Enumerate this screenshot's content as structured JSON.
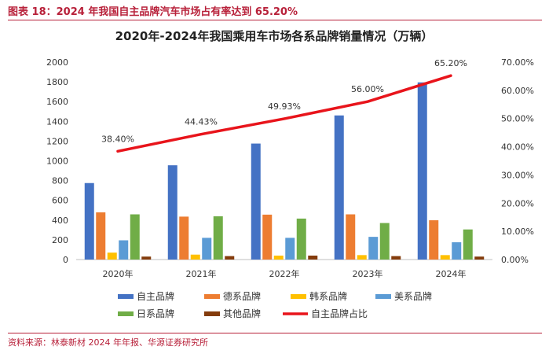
{
  "figure": {
    "title": "图表 18：2024 年我国自主品牌汽车市场占有率达到 65.20%",
    "source": "资料来源：林泰新材 2024 年年报、华源证券研究所"
  },
  "chart_data": {
    "type": "bar",
    "title": "2020年-2024年我国乘用车市场各系品牌销量情况（万辆）",
    "categories": [
      "2020年",
      "2021年",
      "2022年",
      "2023年",
      "2024年"
    ],
    "ylim": [
      0,
      2000
    ],
    "yticks": [
      "0",
      "200",
      "400",
      "600",
      "800",
      "1000",
      "1200",
      "1400",
      "1600",
      "1800",
      "2000"
    ],
    "y2lim": [
      0,
      70
    ],
    "y2ticks": [
      "0.00%",
      "10.00%",
      "20.00%",
      "30.00%",
      "40.00%",
      "50.00%",
      "60.00%",
      "70.00%"
    ],
    "series": [
      {
        "name": "自主品牌",
        "color": "#4472c4",
        "values": [
          775,
          955,
          1175,
          1460,
          1795
        ]
      },
      {
        "name": "德系品牌",
        "color": "#ed7d31",
        "values": [
          478,
          435,
          455,
          458,
          398
        ]
      },
      {
        "name": "韩系品牌",
        "color": "#ffc000",
        "values": [
          70,
          50,
          40,
          45,
          45
        ]
      },
      {
        "name": "美系品牌",
        "color": "#5b9bd5",
        "values": [
          195,
          220,
          220,
          230,
          175
        ]
      },
      {
        "name": "日系品牌",
        "color": "#70ad47",
        "values": [
          458,
          438,
          415,
          370,
          305
        ]
      },
      {
        "name": "其他品牌",
        "color": "#843c0c",
        "values": [
          30,
          35,
          40,
          35,
          30
        ]
      }
    ],
    "line": {
      "name": "自主品牌占比",
      "color": "#e8141b",
      "axis": "right",
      "values": [
        38.4,
        44.43,
        49.93,
        56.0,
        65.2
      ],
      "labels": [
        "38.40%",
        "44.43%",
        "49.93%",
        "56.00%",
        "65.20%"
      ]
    },
    "legend_position": "bottom"
  }
}
